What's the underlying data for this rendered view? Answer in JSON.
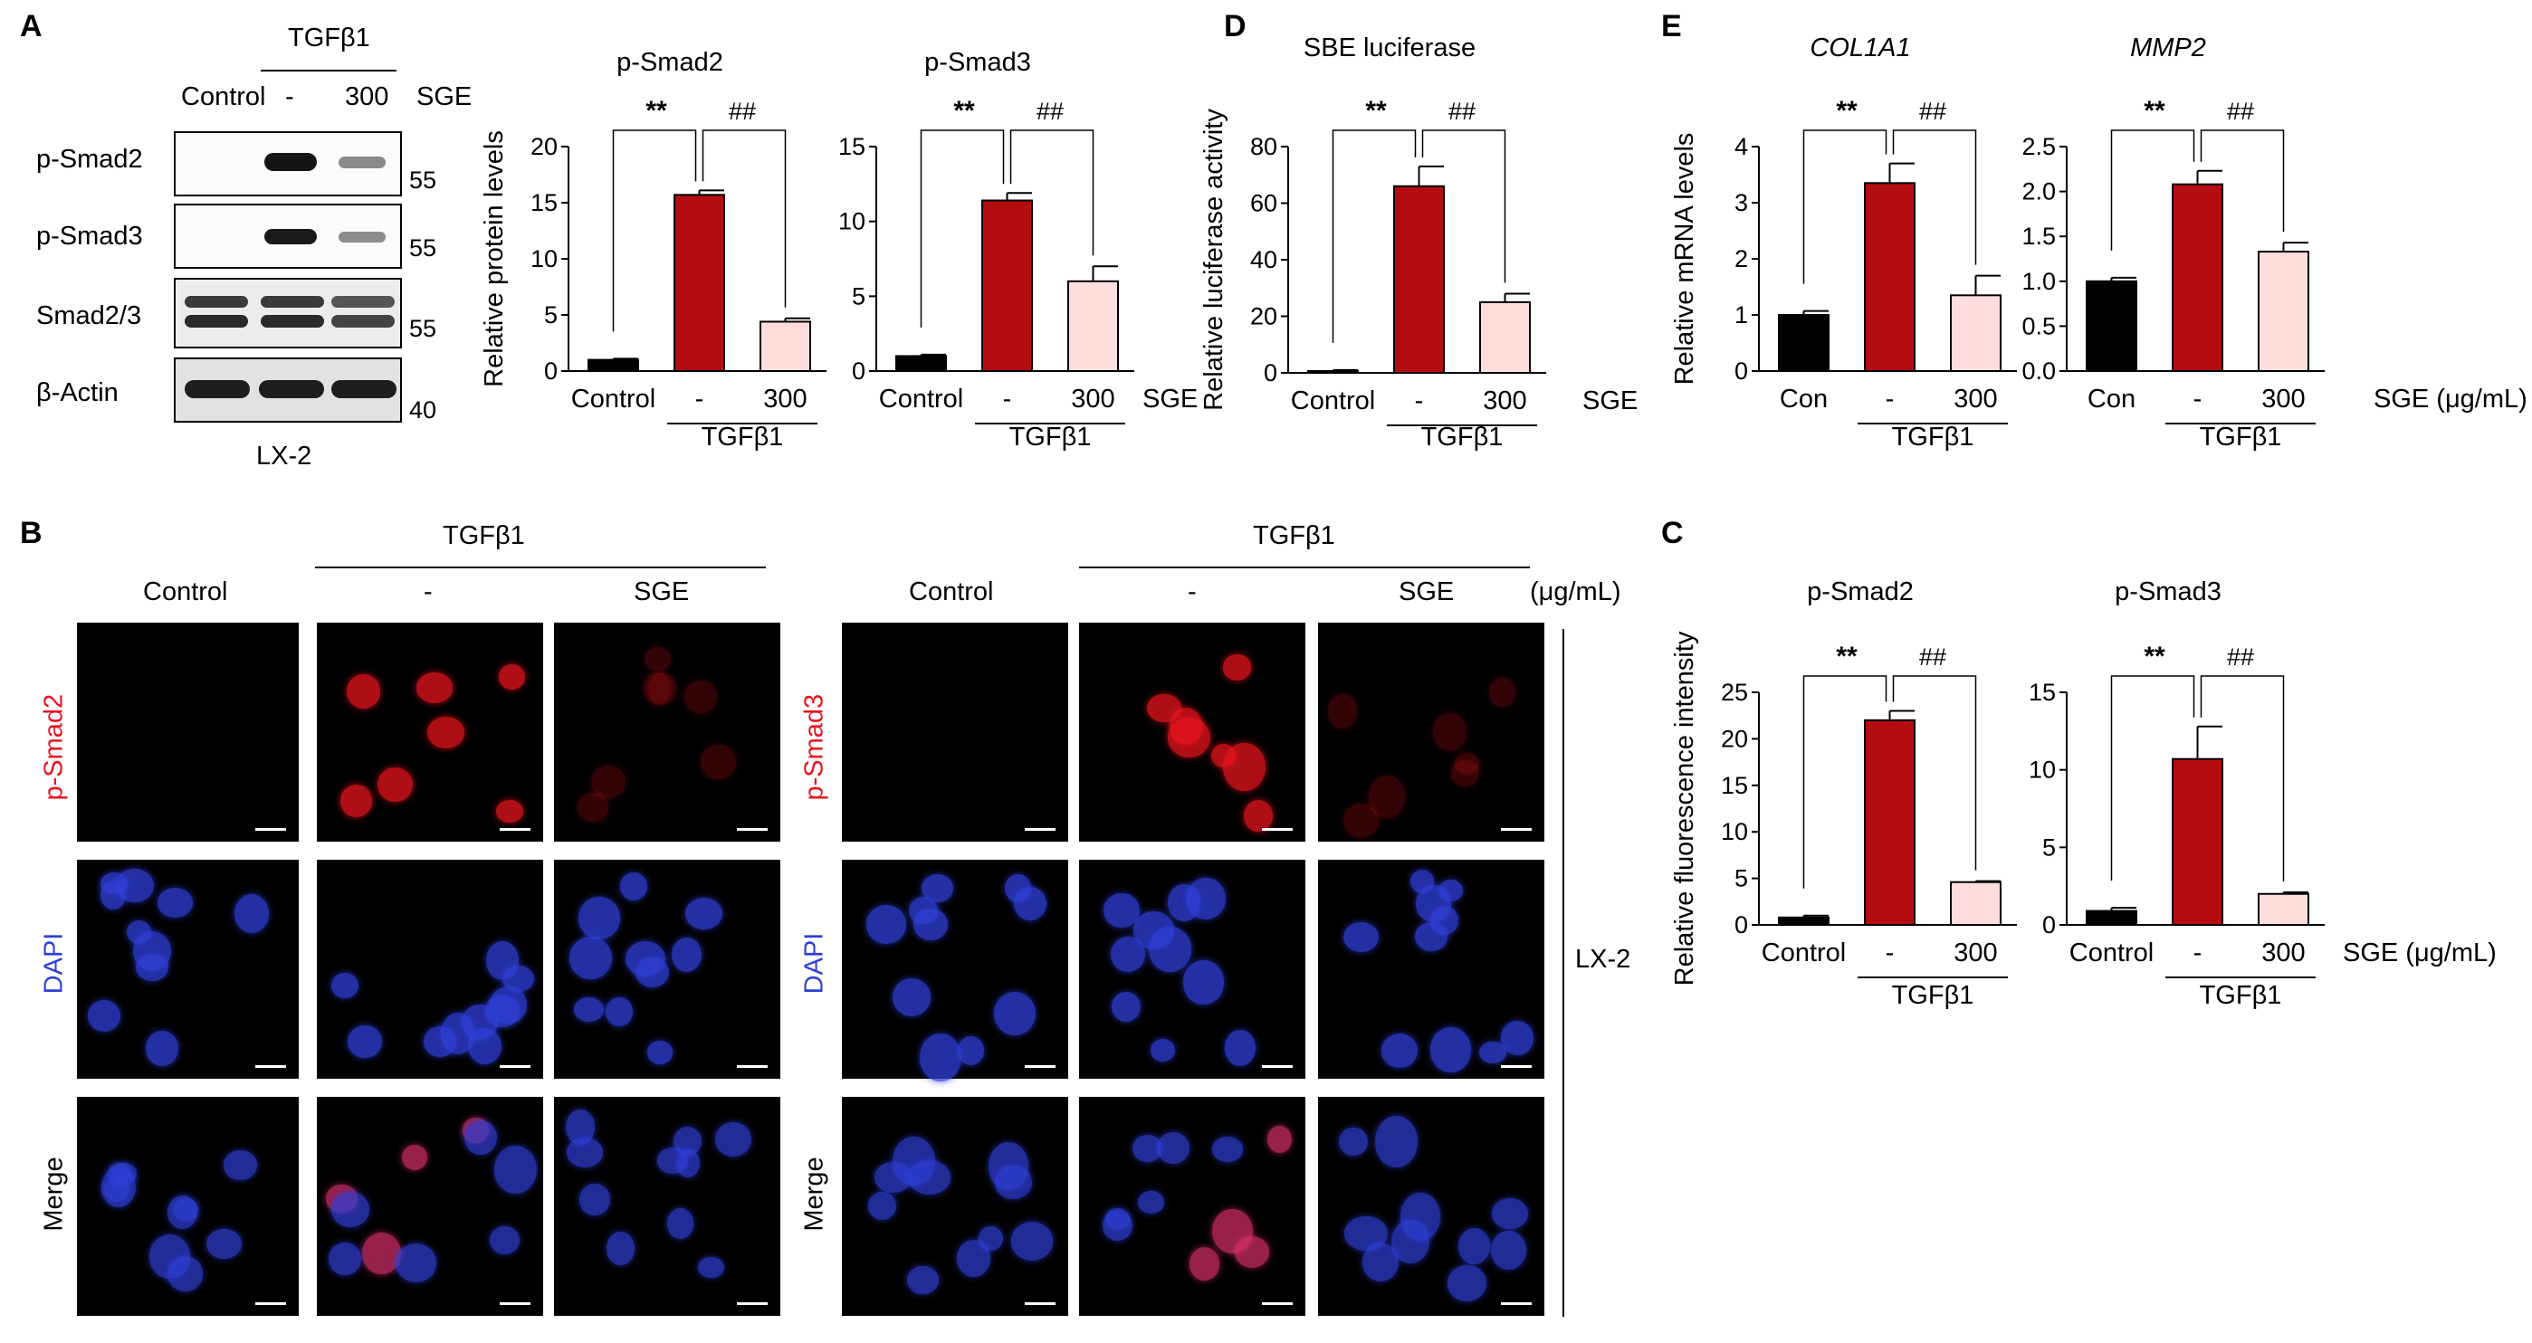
{
  "panel_labels": {
    "A": "A",
    "B": "B",
    "C": "C",
    "D": "D",
    "E": "E"
  },
  "western": {
    "header_tgf": "TGFβ1",
    "lanes": [
      "Control",
      "-",
      "300"
    ],
    "sge_label": "SGE",
    "bands": [
      "p-Smad2",
      "p-Smad3",
      "Smad2/3",
      "β-Actin"
    ],
    "markers": [
      "55",
      "55",
      "55",
      "40"
    ],
    "cell_line": "LX-2"
  },
  "if_panel": {
    "tgf_label": "TGFβ1",
    "columns": [
      "Control",
      "-",
      "SGE"
    ],
    "unit": "(μg/mL)",
    "left_rows": [
      "p-Smad2",
      "DAPI",
      "Merge"
    ],
    "right_rows": [
      "p-Smad3",
      "DAPI",
      "Merge"
    ],
    "cell_line": "LX-2",
    "colors": {
      "psmad": "#e8141e",
      "dapi": "#2f3fd8",
      "merge": "#1a1a1a"
    }
  },
  "colors": {
    "control": "#000000",
    "tgf": "#b30d12",
    "sge": "#ffdddd"
  },
  "chart_data": [
    {
      "type": "bar",
      "title": "p-Smad2",
      "ylabel": "Relative protein levels",
      "categories": [
        "Control",
        "-",
        "300"
      ],
      "values": [
        1.0,
        15.7,
        4.4
      ],
      "errors": [
        0.1,
        0.4,
        0.3
      ],
      "ylim": [
        0,
        20
      ],
      "yticks": [
        "0",
        "5",
        "10",
        "15",
        "20"
      ],
      "sig_left": "**",
      "sig_right": "##",
      "group_label": "TGFβ1",
      "treatment_label": ""
    },
    {
      "type": "bar",
      "title": "p-Smad3",
      "ylabel": "",
      "categories": [
        "Control",
        "-",
        "300"
      ],
      "values": [
        1.0,
        11.4,
        6.0
      ],
      "errors": [
        0.1,
        0.5,
        1.0
      ],
      "ylim": [
        0,
        15
      ],
      "yticks": [
        "0",
        "5",
        "10",
        "15"
      ],
      "sig_left": "**",
      "sig_right": "##",
      "group_label": "TGFβ1",
      "treatment_label": "SGE"
    },
    {
      "type": "bar",
      "title": "SBE luciferase",
      "ylabel": "Relative luciferase activity",
      "categories": [
        "Control",
        "-",
        "300"
      ],
      "values": [
        0.5,
        66.0,
        25.0
      ],
      "errors": [
        0.5,
        7.0,
        3.0
      ],
      "ylim": [
        0,
        80
      ],
      "yticks": [
        "0",
        "20",
        "40",
        "60",
        "80"
      ],
      "sig_left": "**",
      "sig_right": "##",
      "group_label": "TGFβ1",
      "treatment_label": "SGE"
    },
    {
      "type": "bar",
      "title": "COL1A1",
      "ylabel": "Relative mRNA levels",
      "categories": [
        "Con",
        "-",
        "300"
      ],
      "values": [
        1.0,
        3.35,
        1.35
      ],
      "errors": [
        0.07,
        0.35,
        0.35
      ],
      "ylim": [
        0,
        4
      ],
      "yticks": [
        "0",
        "1",
        "2",
        "3",
        "4"
      ],
      "sig_left": "**",
      "sig_right": "##",
      "group_label": "TGFβ1",
      "treatment_label": ""
    },
    {
      "type": "bar",
      "title": "MMP2",
      "ylabel": "",
      "categories": [
        "Con",
        "-",
        "300"
      ],
      "values": [
        1.0,
        2.08,
        1.33
      ],
      "errors": [
        0.04,
        0.15,
        0.1
      ],
      "ylim": [
        0,
        2.5
      ],
      "yticks": [
        "0.0",
        "0.5",
        "1.0",
        "1.5",
        "2.0",
        "2.5"
      ],
      "sig_left": "**",
      "sig_right": "##",
      "group_label": "TGFβ1",
      "treatment_label": "SGE (μg/mL)"
    },
    {
      "type": "bar",
      "title": "p-Smad2",
      "ylabel": "Relative fluorescence intensity",
      "categories": [
        "Control",
        "-",
        "300"
      ],
      "values": [
        0.8,
        22.0,
        4.6
      ],
      "errors": [
        0.2,
        1.0,
        0.1
      ],
      "ylim": [
        0,
        25
      ],
      "yticks": [
        "0",
        "5",
        "10",
        "15",
        "20",
        "25"
      ],
      "sig_left": "**",
      "sig_right": "##",
      "group_label": "TGFβ1",
      "treatment_label": ""
    },
    {
      "type": "bar",
      "title": "p-Smad3",
      "ylabel": "",
      "categories": [
        "Control",
        "-",
        "300"
      ],
      "values": [
        0.9,
        10.7,
        2.0
      ],
      "errors": [
        0.2,
        2.1,
        0.1
      ],
      "ylim": [
        0,
        15
      ],
      "yticks": [
        "0",
        "5",
        "10",
        "15"
      ],
      "sig_left": "**",
      "sig_right": "##",
      "group_label": "TGFβ1",
      "treatment_label": "SGE (μg/mL)"
    }
  ]
}
